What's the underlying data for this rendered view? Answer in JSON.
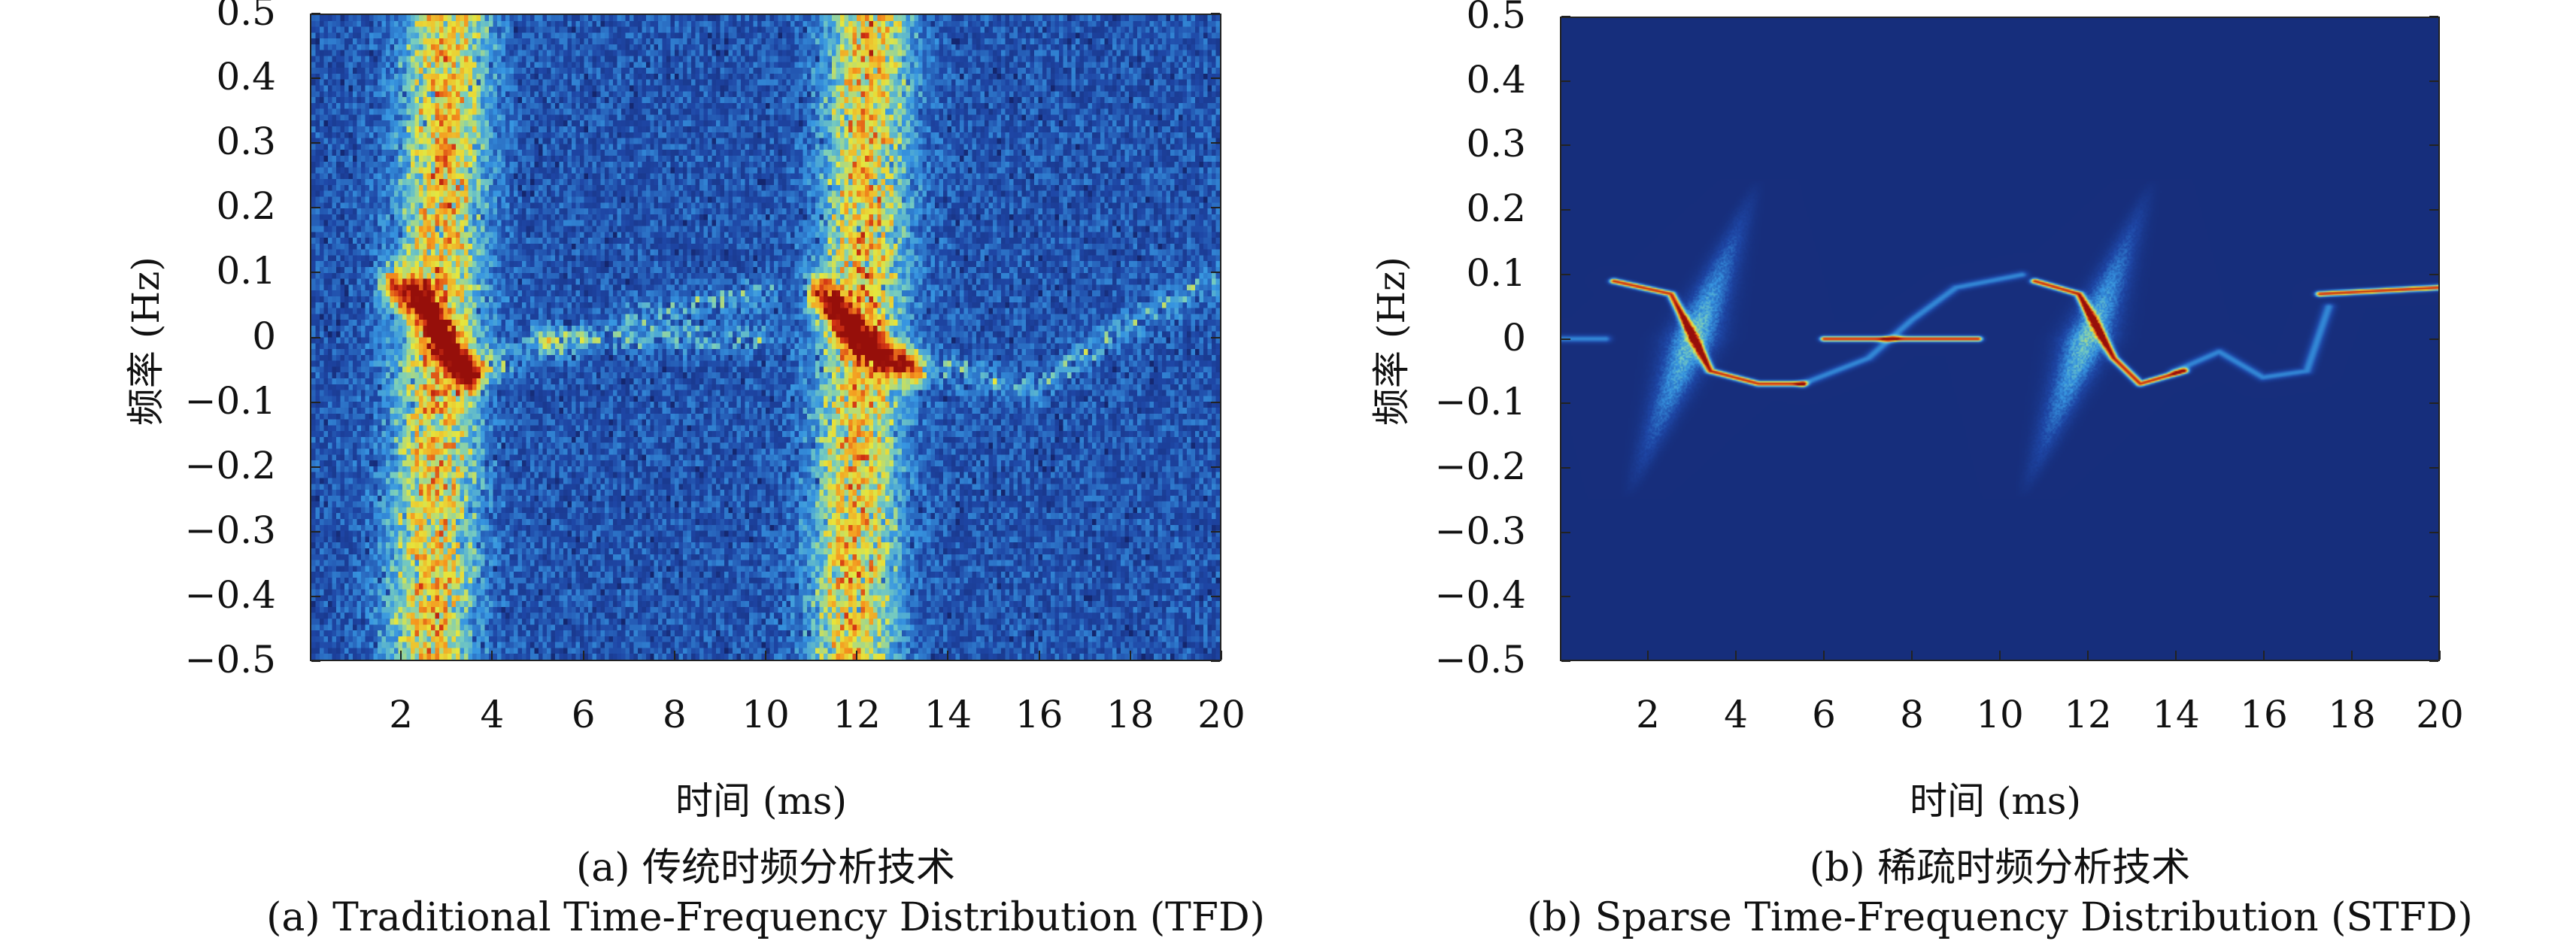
{
  "chart_data": [
    {
      "type": "heatmap",
      "id": "tfd",
      "caption_cn": "(a) 传统时频分析技术",
      "caption_en": "(a) Traditional Time-Frequency Distribution (TFD)",
      "xlabel": "时间 (ms)",
      "ylabel": "频率 (Hz)",
      "xlim": [
        0,
        20
      ],
      "ylim": [
        -0.5,
        0.5
      ],
      "xticks": [
        "2",
        "4",
        "6",
        "8",
        "10",
        "12",
        "14",
        "16",
        "18",
        "20"
      ],
      "yticks": [
        "0.5",
        "0.4",
        "0.3",
        "0.2",
        "0.1",
        "0",
        "−0.1",
        "−0.2",
        "−0.3",
        "−0.4",
        "−0.5"
      ],
      "colormap": "jet",
      "energy_bands_ms": [
        2.8,
        12.1
      ],
      "ridges": [
        [
          [
            1.8,
            0.08
          ],
          [
            2.5,
            0.05
          ],
          [
            3.0,
            -0.02
          ],
          [
            3.5,
            -0.06
          ]
        ],
        [
          [
            11.2,
            0.07
          ],
          [
            12.0,
            0.0
          ],
          [
            12.6,
            -0.03
          ],
          [
            13.3,
            -0.05
          ]
        ]
      ],
      "faint_lines": [
        [
          [
            5,
            0
          ],
          [
            10,
            0
          ]
        ],
        [
          [
            14,
            -0.05
          ],
          [
            16,
            -0.08
          ],
          [
            17.5,
            0.0
          ],
          [
            20,
            0.09
          ]
        ],
        [
          [
            3.5,
            -0.05
          ],
          [
            6,
            0.0
          ]
        ],
        [
          [
            7,
            0.03
          ],
          [
            10,
            0.07
          ]
        ]
      ]
    },
    {
      "type": "heatmap",
      "id": "stfd",
      "caption_cn": "(b) 稀疏时频分析技术",
      "caption_en": "(b) Sparse Time-Frequency Distribution (STFD)",
      "xlabel": "时间 (ms)",
      "ylabel": "频率 (Hz)",
      "xlim": [
        0,
        20
      ],
      "ylim": [
        -0.5,
        0.5
      ],
      "xticks": [
        "2",
        "4",
        "6",
        "8",
        "10",
        "12",
        "14",
        "16",
        "18",
        "20"
      ],
      "yticks": [
        "0.5",
        "0.4",
        "0.3",
        "0.2",
        "0.1",
        "0",
        "−0.1",
        "−0.2",
        "−0.3",
        "−0.4",
        "−0.5"
      ],
      "colormap": "jet",
      "ridges": [
        [
          [
            1.2,
            0.09
          ],
          [
            2.5,
            0.07
          ],
          [
            3.4,
            -0.05
          ],
          [
            4.5,
            -0.07
          ],
          [
            5.5,
            -0.07
          ]
        ],
        [
          [
            6,
            0
          ],
          [
            9.5,
            0
          ]
        ],
        [
          [
            10.8,
            0.09
          ],
          [
            11.8,
            0.07
          ],
          [
            12.6,
            -0.03
          ],
          [
            13.2,
            -0.07
          ],
          [
            14.2,
            -0.05
          ]
        ],
        [
          [
            17.3,
            0.07
          ],
          [
            20,
            0.08
          ]
        ]
      ],
      "faint_lines": [
        [
          [
            0,
            0
          ],
          [
            1,
            0
          ]
        ],
        [
          [
            5.5,
            -0.07
          ],
          [
            7,
            -0.03
          ],
          [
            8,
            0.03
          ],
          [
            9,
            0.08
          ],
          [
            10.5,
            0.1
          ]
        ],
        [
          [
            14,
            -0.05
          ],
          [
            15,
            -0.02
          ],
          [
            16,
            -0.06
          ],
          [
            17,
            -0.05
          ],
          [
            17.5,
            0.05
          ]
        ]
      ],
      "spread_centers_ms": [
        3.0,
        12.0
      ]
    }
  ]
}
